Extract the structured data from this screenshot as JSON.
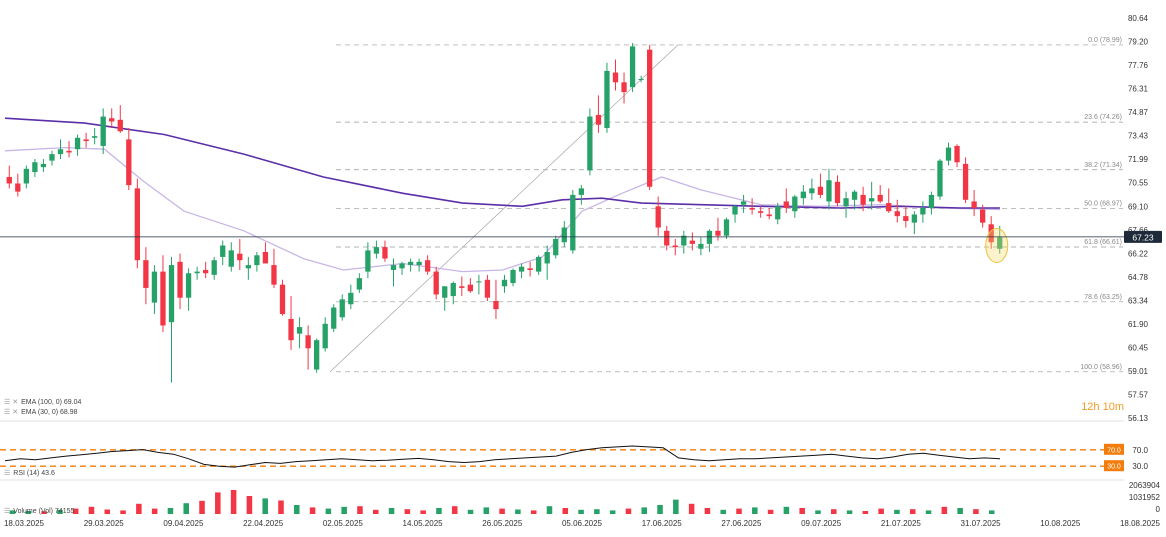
{
  "legend": {
    "ema100": "EMA (100, 0) 69.04",
    "ema30": "EMA (30, 0) 68.98",
    "rsi": "RSI (14) 43.6",
    "volume": "Volume (Vol) 74155"
  },
  "timer": "12h 10m",
  "colors": {
    "up": "#26a269",
    "down": "#f23645",
    "ema100": "#5b2fa8",
    "ema30": "#c8b6e6",
    "fib": "#9a9a9a",
    "rsi_line": "#111111",
    "rsi_bound": "#f27d0c",
    "price_tag": "#1e2a3a",
    "highlight": "#f7d96a"
  },
  "chart_data": {
    "type": "candlestick",
    "price_axis_ticks": [
      "80.64",
      "79.20",
      "77.76",
      "76.31",
      "74.87",
      "73.43",
      "71.99",
      "70.55",
      "69.10",
      "67.66",
      "66.22",
      "64.78",
      "63.34",
      "61.90",
      "60.45",
      "59.01",
      "57.57",
      "56.13"
    ],
    "current_price": "67.23",
    "date_ticks": [
      "18.03.2025",
      "29.03.2025",
      "09.04.2025",
      "22.04.2025",
      "02.05.2025",
      "14.05.2025",
      "26.05.2025",
      "05.06.2025",
      "17.06.2025",
      "27.06.2025",
      "09.07.2025",
      "21.07.2025",
      "31.07.2025",
      "10.08.2025",
      "18.08.2025"
    ],
    "fibonacci": [
      {
        "label": "0.0 (78.99)",
        "price": 78.99
      },
      {
        "label": "23.6 (74.26)",
        "price": 74.26
      },
      {
        "label": "38.2 (71.34)",
        "price": 71.34
      },
      {
        "label": "50.0 (68.97)",
        "price": 68.97
      },
      {
        "label": "61.8 (66.61)",
        "price": 66.61
      },
      {
        "label": "78.6 (63.25)",
        "price": 63.25
      },
      {
        "label": "100.0 (58.96)",
        "price": 58.96
      }
    ],
    "candles": [
      [
        70.9,
        71.6,
        70.2,
        70.5
      ],
      [
        70.5,
        71.1,
        69.7,
        70.0
      ],
      [
        70.5,
        71.6,
        70.2,
        71.4
      ],
      [
        71.2,
        72.0,
        70.9,
        71.8
      ],
      [
        71.5,
        72.0,
        71.2,
        71.7
      ],
      [
        71.9,
        72.5,
        71.6,
        72.3
      ],
      [
        72.3,
        73.2,
        72.0,
        72.6
      ],
      [
        72.5,
        73.1,
        72.1,
        72.4
      ],
      [
        72.6,
        73.5,
        72.2,
        73.3
      ],
      [
        73.2,
        73.6,
        72.7,
        73.1
      ],
      [
        73.3,
        73.9,
        72.9,
        73.4
      ],
      [
        72.8,
        75.1,
        72.3,
        74.6
      ],
      [
        74.5,
        75.1,
        73.9,
        74.3
      ],
      [
        74.4,
        75.3,
        73.6,
        73.7
      ],
      [
        73.2,
        73.9,
        70.1,
        70.4
      ],
      [
        70.2,
        70.8,
        65.3,
        65.8
      ],
      [
        65.8,
        66.6,
        63.1,
        64.1
      ],
      [
        63.2,
        65.5,
        62.5,
        65.1
      ],
      [
        65.1,
        66.1,
        61.4,
        61.8
      ],
      [
        62.0,
        66.0,
        58.3,
        65.5
      ],
      [
        65.7,
        66.2,
        62.8,
        63.5
      ],
      [
        63.5,
        65.3,
        62.7,
        65.0
      ],
      [
        65.0,
        65.4,
        64.6,
        65.1
      ],
      [
        65.2,
        65.7,
        64.7,
        65.0
      ],
      [
        64.9,
        66.0,
        64.6,
        65.8
      ],
      [
        66.0,
        67.0,
        65.5,
        66.7
      ],
      [
        65.4,
        66.9,
        65.1,
        66.4
      ],
      [
        66.2,
        67.1,
        65.2,
        65.8
      ],
      [
        65.3,
        66.0,
        64.6,
        65.5
      ],
      [
        65.5,
        66.3,
        65.1,
        66.1
      ],
      [
        66.3,
        66.9,
        65.6,
        65.6
      ],
      [
        65.5,
        66.5,
        64.1,
        64.3
      ],
      [
        64.3,
        64.6,
        62.4,
        62.5
      ],
      [
        62.2,
        63.6,
        60.3,
        60.9
      ],
      [
        61.3,
        62.3,
        60.4,
        61.7
      ],
      [
        61.2,
        61.8,
        59.1,
        60.4
      ],
      [
        59.1,
        61.0,
        58.9,
        60.9
      ],
      [
        60.4,
        62.3,
        60.2,
        61.9
      ],
      [
        61.6,
        63.1,
        61.4,
        62.9
      ],
      [
        62.3,
        63.7,
        62.1,
        63.4
      ],
      [
        63.1,
        64.3,
        62.8,
        63.8
      ],
      [
        64.0,
        65.0,
        63.8,
        64.7
      ],
      [
        65.1,
        66.9,
        64.7,
        66.4
      ],
      [
        66.2,
        67.0,
        65.9,
        66.6
      ],
      [
        66.6,
        67.0,
        65.7,
        65.9
      ],
      [
        65.2,
        65.9,
        64.2,
        65.5
      ],
      [
        65.3,
        65.7,
        64.9,
        65.6
      ],
      [
        65.5,
        65.9,
        65.1,
        65.7
      ],
      [
        65.5,
        65.9,
        65.1,
        65.7
      ],
      [
        65.8,
        66.1,
        64.9,
        65.1
      ],
      [
        65.1,
        65.4,
        63.4,
        63.7
      ],
      [
        63.5,
        64.2,
        62.7,
        64.2
      ],
      [
        63.6,
        64.5,
        63.1,
        64.4
      ],
      [
        64.2,
        64.8,
        63.6,
        64.1
      ],
      [
        64.3,
        64.7,
        63.8,
        63.9
      ],
      [
        64.5,
        64.9,
        63.7,
        64.5
      ],
      [
        64.6,
        64.9,
        63.3,
        63.5
      ],
      [
        63.3,
        64.6,
        62.2,
        62.8
      ],
      [
        64.2,
        64.9,
        63.8,
        64.6
      ],
      [
        64.4,
        65.3,
        64.2,
        65.2
      ],
      [
        65.1,
        65.6,
        64.7,
        65.4
      ],
      [
        65.3,
        65.7,
        64.8,
        65.2
      ],
      [
        65.1,
        66.1,
        64.9,
        66.0
      ],
      [
        65.6,
        66.7,
        64.6,
        66.3
      ],
      [
        66.1,
        67.3,
        65.9,
        67.1
      ],
      [
        66.9,
        68.2,
        66.6,
        67.8
      ],
      [
        66.4,
        70.1,
        66.2,
        69.8
      ],
      [
        69.8,
        70.4,
        69.2,
        70.2
      ],
      [
        71.3,
        75.1,
        71.0,
        74.6
      ],
      [
        74.7,
        75.9,
        73.6,
        74.1
      ],
      [
        73.9,
        77.9,
        73.6,
        77.4
      ],
      [
        77.3,
        78.1,
        76.2,
        76.7
      ],
      [
        76.7,
        77.3,
        75.4,
        76.1
      ],
      [
        76.4,
        79.1,
        76.1,
        78.9
      ],
      [
        76.9,
        77.1,
        76.7,
        76.9
      ],
      [
        78.7,
        79.0,
        70.1,
        70.3
      ],
      [
        69.1,
        69.7,
        67.3,
        67.8
      ],
      [
        67.6,
        67.9,
        66.4,
        66.7
      ],
      [
        66.7,
        67.1,
        66.1,
        66.6
      ],
      [
        66.7,
        67.6,
        66.2,
        67.3
      ],
      [
        67.0,
        67.5,
        66.4,
        66.8
      ],
      [
        66.5,
        67.2,
        66.1,
        66.8
      ],
      [
        66.8,
        67.7,
        66.3,
        67.6
      ],
      [
        67.6,
        68.4,
        67.0,
        67.3
      ],
      [
        67.3,
        68.4,
        67.1,
        68.3
      ],
      [
        68.6,
        69.2,
        68.1,
        69.1
      ],
      [
        69.2,
        69.8,
        68.7,
        69.4
      ],
      [
        69.0,
        69.6,
        68.6,
        68.9
      ],
      [
        68.8,
        69.1,
        68.4,
        68.7
      ],
      [
        68.6,
        69.0,
        68.3,
        68.5
      ],
      [
        68.3,
        69.3,
        68.0,
        69.1
      ],
      [
        69.4,
        70.2,
        68.7,
        69.0
      ],
      [
        68.8,
        69.8,
        68.4,
        69.7
      ],
      [
        69.6,
        70.4,
        69.2,
        70.0
      ],
      [
        69.9,
        70.8,
        69.5,
        70.2
      ],
      [
        70.3,
        71.1,
        69.6,
        69.8
      ],
      [
        69.4,
        71.4,
        68.9,
        70.7
      ],
      [
        70.6,
        71.0,
        69.1,
        69.3
      ],
      [
        69.1,
        70.0,
        68.4,
        69.6
      ],
      [
        69.5,
        70.1,
        68.9,
        70.0
      ],
      [
        69.8,
        70.3,
        68.8,
        69.2
      ],
      [
        69.4,
        70.6,
        68.9,
        69.6
      ],
      [
        69.8,
        70.4,
        69.3,
        69.4
      ],
      [
        69.3,
        70.2,
        68.7,
        68.8
      ],
      [
        68.8,
        69.5,
        68.1,
        68.5
      ],
      [
        68.5,
        69.1,
        67.8,
        68.2
      ],
      [
        68.1,
        68.8,
        67.4,
        68.6
      ],
      [
        68.6,
        69.4,
        68.1,
        69.0
      ],
      [
        69.0,
        70.0,
        68.6,
        69.8
      ],
      [
        69.7,
        72.0,
        69.5,
        71.9
      ],
      [
        71.9,
        73.0,
        71.6,
        72.7
      ],
      [
        72.8,
        72.9,
        71.5,
        71.8
      ],
      [
        71.7,
        72.1,
        69.3,
        69.5
      ],
      [
        69.4,
        70.1,
        68.5,
        69.0
      ],
      [
        68.9,
        69.2,
        67.8,
        68.1
      ],
      [
        68.0,
        68.5,
        66.5,
        66.9
      ],
      [
        66.5,
        67.9,
        66.2,
        67.2
      ]
    ],
    "ema100_points": [
      [
        0,
        74.5
      ],
      [
        0.08,
        74.2
      ],
      [
        0.16,
        73.5
      ],
      [
        0.24,
        72.3
      ],
      [
        0.32,
        70.9
      ],
      [
        0.4,
        69.9
      ],
      [
        0.46,
        69.3
      ],
      [
        0.52,
        69.1
      ],
      [
        0.56,
        69.5
      ],
      [
        0.6,
        69.6
      ],
      [
        0.64,
        69.3
      ],
      [
        0.7,
        69.2
      ],
      [
        0.76,
        69.1
      ],
      [
        0.84,
        69.0
      ],
      [
        0.9,
        69.1
      ],
      [
        0.96,
        69.0
      ],
      [
        1,
        69.0
      ]
    ],
    "ema30_points": [
      [
        0,
        72.5
      ],
      [
        0.06,
        72.7
      ],
      [
        0.1,
        72.6
      ],
      [
        0.14,
        70.6
      ],
      [
        0.18,
        68.8
      ],
      [
        0.24,
        67.6
      ],
      [
        0.3,
        65.9
      ],
      [
        0.34,
        65.2
      ],
      [
        0.4,
        65.6
      ],
      [
        0.46,
        65.1
      ],
      [
        0.5,
        65.2
      ],
      [
        0.54,
        66.0
      ],
      [
        0.58,
        68.8
      ],
      [
        0.62,
        69.9
      ],
      [
        0.66,
        70.9
      ],
      [
        0.7,
        70.1
      ],
      [
        0.76,
        69.2
      ],
      [
        0.82,
        69.1
      ],
      [
        0.88,
        69.2
      ],
      [
        0.94,
        69.0
      ],
      [
        1,
        68.9
      ]
    ],
    "rsi": {
      "levels": [
        "70.0",
        "30.0"
      ],
      "axis_label": "30.0",
      "values": [
        42,
        46,
        44,
        48,
        52,
        55,
        58,
        62,
        64,
        66,
        60,
        56,
        46,
        34,
        30,
        28,
        33,
        38,
        36,
        40,
        42,
        44,
        46,
        44,
        42,
        43,
        45,
        47,
        44,
        40,
        38,
        40,
        44,
        46,
        48,
        50,
        52,
        60,
        66,
        70,
        72,
        74,
        72,
        70,
        48,
        44,
        42,
        44,
        46,
        46,
        48,
        50,
        52,
        54,
        56,
        52,
        48,
        46,
        50,
        56,
        58,
        54,
        50,
        46,
        48,
        46
      ]
    },
    "volume": {
      "axis_ticks": [
        "2063904",
        "1031952",
        "0"
      ],
      "bars": [
        [
          0.12,
          "up"
        ],
        [
          0.1,
          "up"
        ],
        [
          0.09,
          "down"
        ],
        [
          0.14,
          "up"
        ],
        [
          0.18,
          "down"
        ],
        [
          0.24,
          "down"
        ],
        [
          0.15,
          "down"
        ],
        [
          0.12,
          "down"
        ],
        [
          0.34,
          "down"
        ],
        [
          0.18,
          "down"
        ],
        [
          0.2,
          "up"
        ],
        [
          0.36,
          "up"
        ],
        [
          0.44,
          "down"
        ],
        [
          0.72,
          "down"
        ],
        [
          0.8,
          "down"
        ],
        [
          0.6,
          "down"
        ],
        [
          0.52,
          "up"
        ],
        [
          0.45,
          "down"
        ],
        [
          0.3,
          "up"
        ],
        [
          0.22,
          "down"
        ],
        [
          0.18,
          "up"
        ],
        [
          0.24,
          "up"
        ],
        [
          0.26,
          "down"
        ],
        [
          0.14,
          "down"
        ],
        [
          0.2,
          "up"
        ],
        [
          0.16,
          "down"
        ],
        [
          0.12,
          "down"
        ],
        [
          0.2,
          "up"
        ],
        [
          0.26,
          "down"
        ],
        [
          0.14,
          "up"
        ],
        [
          0.22,
          "up"
        ],
        [
          0.18,
          "down"
        ],
        [
          0.15,
          "up"
        ],
        [
          0.12,
          "down"
        ],
        [
          0.26,
          "up"
        ],
        [
          0.2,
          "down"
        ],
        [
          0.14,
          "up"
        ],
        [
          0.16,
          "up"
        ],
        [
          0.12,
          "up"
        ],
        [
          0.18,
          "down"
        ],
        [
          0.22,
          "up"
        ],
        [
          0.3,
          "up"
        ],
        [
          0.48,
          "up"
        ],
        [
          0.34,
          "down"
        ],
        [
          0.2,
          "down"
        ],
        [
          0.14,
          "up"
        ],
        [
          0.18,
          "down"
        ],
        [
          0.22,
          "up"
        ],
        [
          0.14,
          "down"
        ],
        [
          0.24,
          "up"
        ],
        [
          0.2,
          "down"
        ],
        [
          0.12,
          "up"
        ],
        [
          0.16,
          "down"
        ],
        [
          0.12,
          "up"
        ],
        [
          0.1,
          "down"
        ],
        [
          0.18,
          "down"
        ],
        [
          0.14,
          "up"
        ],
        [
          0.16,
          "down"
        ],
        [
          0.12,
          "up"
        ],
        [
          0.24,
          "down"
        ],
        [
          0.2,
          "up"
        ],
        [
          0.16,
          "down"
        ],
        [
          0.12,
          "up"
        ]
      ]
    }
  }
}
